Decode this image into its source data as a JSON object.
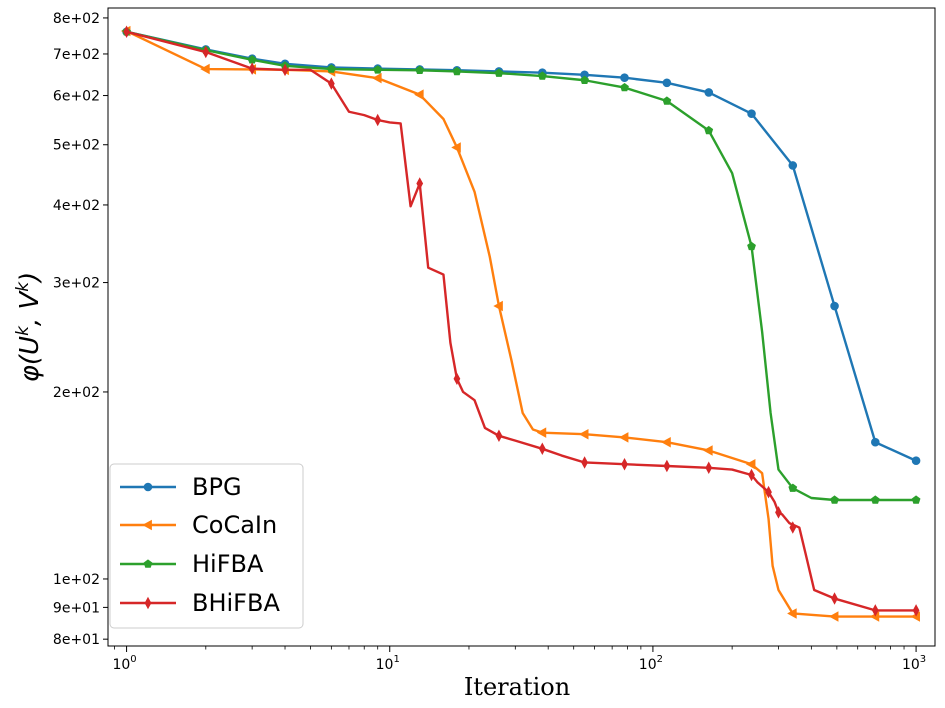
{
  "chart_data": {
    "type": "line",
    "title": "",
    "xlabel": "Iteration",
    "ylabel": "φ(U^k, V^k)",
    "ylabel_parts": {
      "phi": "φ",
      "open": "(U",
      "sup1": "k",
      "sep": ", V",
      "sup2": "k",
      "close": ")"
    },
    "xscale": "log",
    "yscale": "log",
    "xlim": [
      0.85,
      1180
    ],
    "ylim": [
      78,
      830
    ],
    "xticks": [
      {
        "value": 1,
        "base": "10",
        "exp": "0"
      },
      {
        "value": 10,
        "base": "10",
        "exp": "1"
      },
      {
        "value": 100,
        "base": "10",
        "exp": "2"
      },
      {
        "value": 1000,
        "base": "10",
        "exp": "3"
      }
    ],
    "yticks": [
      {
        "value": 80,
        "label": "8e+01"
      },
      {
        "value": 90,
        "label": "9e+01"
      },
      {
        "value": 100,
        "label": "1e+02"
      },
      {
        "value": 200,
        "label": "2e+02"
      },
      {
        "value": 300,
        "label": "3e+02"
      },
      {
        "value": 400,
        "label": "4e+02"
      },
      {
        "value": 500,
        "label": "5e+02"
      },
      {
        "value": 600,
        "label": "6e+02"
      },
      {
        "value": 700,
        "label": "7e+02"
      },
      {
        "value": 800,
        "label": "8e+02"
      }
    ],
    "legend_position": "lower-left",
    "series": [
      {
        "name": "BPG",
        "color": "#1f77b4",
        "marker": "circle",
        "points": [
          [
            1,
            760
          ],
          [
            2,
            712
          ],
          [
            3,
            688
          ],
          [
            4,
            675
          ],
          [
            6,
            666
          ],
          [
            9,
            663
          ],
          [
            13,
            661
          ],
          [
            18,
            659
          ],
          [
            26,
            656
          ],
          [
            38,
            653
          ],
          [
            55,
            648
          ],
          [
            78,
            641
          ],
          [
            113,
            629
          ],
          [
            163,
            607
          ],
          [
            237,
            561
          ],
          [
            340,
            463
          ],
          [
            490,
            275
          ],
          [
            700,
            166
          ],
          [
            1000,
            155
          ]
        ],
        "markers": [
          [
            1,
            760
          ],
          [
            2,
            712
          ],
          [
            3,
            688
          ],
          [
            4,
            675
          ],
          [
            6,
            666
          ],
          [
            9,
            663
          ],
          [
            13,
            661
          ],
          [
            18,
            659
          ],
          [
            26,
            656
          ],
          [
            38,
            653
          ],
          [
            55,
            648
          ],
          [
            78,
            641
          ],
          [
            113,
            629
          ],
          [
            163,
            607
          ],
          [
            237,
            561
          ],
          [
            340,
            463
          ],
          [
            490,
            275
          ],
          [
            700,
            166
          ],
          [
            1000,
            155
          ]
        ]
      },
      {
        "name": "CoCaIn",
        "color": "#ff7f0e",
        "marker": "triangle-left",
        "points": [
          [
            1,
            762
          ],
          [
            2,
            662
          ],
          [
            3,
            661
          ],
          [
            4,
            660
          ],
          [
            6,
            656
          ],
          [
            9,
            640
          ],
          [
            13,
            602
          ],
          [
            16,
            550
          ],
          [
            18,
            495
          ],
          [
            21,
            420
          ],
          [
            24,
            330
          ],
          [
            26,
            275
          ],
          [
            29,
            225
          ],
          [
            32,
            185
          ],
          [
            35,
            174
          ],
          [
            38,
            172
          ],
          [
            55,
            171
          ],
          [
            78,
            169
          ],
          [
            113,
            166
          ],
          [
            163,
            161
          ],
          [
            237,
            153
          ],
          [
            260,
            148
          ],
          [
            275,
            125
          ],
          [
            285,
            105
          ],
          [
            300,
            96
          ],
          [
            340,
            88
          ],
          [
            490,
            87
          ],
          [
            700,
            87
          ],
          [
            1000,
            87
          ]
        ],
        "markers": [
          [
            1,
            762
          ],
          [
            2,
            662
          ],
          [
            3,
            661
          ],
          [
            4,
            660
          ],
          [
            6,
            656
          ],
          [
            9,
            640
          ],
          [
            13,
            602
          ],
          [
            18,
            495
          ],
          [
            26,
            275
          ],
          [
            38,
            172
          ],
          [
            55,
            171
          ],
          [
            78,
            169
          ],
          [
            113,
            166
          ],
          [
            163,
            161
          ],
          [
            237,
            153
          ],
          [
            340,
            88
          ],
          [
            490,
            87
          ],
          [
            700,
            87
          ],
          [
            1000,
            87
          ]
        ]
      },
      {
        "name": "HiFBA",
        "color": "#2ca02c",
        "marker": "pentagon",
        "points": [
          [
            1,
            760
          ],
          [
            2,
            710
          ],
          [
            3,
            685
          ],
          [
            4,
            670
          ],
          [
            6,
            662
          ],
          [
            9,
            660
          ],
          [
            13,
            659
          ],
          [
            18,
            656
          ],
          [
            26,
            652
          ],
          [
            38,
            645
          ],
          [
            55,
            635
          ],
          [
            78,
            618
          ],
          [
            113,
            588
          ],
          [
            163,
            527
          ],
          [
            200,
            450
          ],
          [
            237,
            343
          ],
          [
            260,
            250
          ],
          [
            280,
            185
          ],
          [
            300,
            150
          ],
          [
            340,
            140
          ],
          [
            400,
            135
          ],
          [
            490,
            134
          ],
          [
            700,
            134
          ],
          [
            1000,
            134
          ]
        ],
        "markers": [
          [
            1,
            760
          ],
          [
            2,
            710
          ],
          [
            3,
            685
          ],
          [
            4,
            670
          ],
          [
            6,
            662
          ],
          [
            9,
            660
          ],
          [
            13,
            659
          ],
          [
            18,
            656
          ],
          [
            26,
            652
          ],
          [
            38,
            645
          ],
          [
            55,
            635
          ],
          [
            78,
            618
          ],
          [
            113,
            588
          ],
          [
            163,
            527
          ],
          [
            237,
            343
          ],
          [
            340,
            140
          ],
          [
            490,
            134
          ],
          [
            700,
            134
          ],
          [
            1000,
            134
          ]
        ]
      },
      {
        "name": "BHiFBA",
        "color": "#d62728",
        "marker": "thin-diamond",
        "points": [
          [
            1,
            760
          ],
          [
            2,
            705
          ],
          [
            3,
            663
          ],
          [
            4,
            660
          ],
          [
            5,
            660
          ],
          [
            6,
            627
          ],
          [
            7,
            565
          ],
          [
            8,
            558
          ],
          [
            9,
            548
          ],
          [
            10,
            543
          ],
          [
            11,
            541
          ],
          [
            12,
            398
          ],
          [
            13,
            433
          ],
          [
            14,
            317
          ],
          [
            16,
            309
          ],
          [
            17,
            240
          ],
          [
            18,
            210
          ],
          [
            19,
            200
          ],
          [
            21,
            194
          ],
          [
            23,
            175
          ],
          [
            26,
            170
          ],
          [
            30,
            167
          ],
          [
            38,
            162
          ],
          [
            45,
            158
          ],
          [
            55,
            154
          ],
          [
            78,
            153
          ],
          [
            113,
            152
          ],
          [
            163,
            151
          ],
          [
            200,
            150
          ],
          [
            237,
            147
          ],
          [
            250,
            143
          ],
          [
            275,
            138
          ],
          [
            290,
            133
          ],
          [
            300,
            128
          ],
          [
            310,
            127
          ],
          [
            330,
            123
          ],
          [
            360,
            121
          ],
          [
            380,
            110
          ],
          [
            410,
            96
          ],
          [
            490,
            93
          ],
          [
            700,
            89
          ],
          [
            1000,
            89
          ]
        ],
        "markers": [
          [
            1,
            760
          ],
          [
            2,
            705
          ],
          [
            3,
            663
          ],
          [
            4,
            660
          ],
          [
            6,
            627
          ],
          [
            9,
            548
          ],
          [
            13,
            433
          ],
          [
            18,
            210
          ],
          [
            26,
            170
          ],
          [
            38,
            162
          ],
          [
            55,
            154
          ],
          [
            78,
            153
          ],
          [
            113,
            152
          ],
          [
            163,
            151
          ],
          [
            237,
            147
          ],
          [
            275,
            138
          ],
          [
            300,
            128
          ],
          [
            340,
            121
          ],
          [
            490,
            93
          ],
          [
            700,
            89
          ],
          [
            1000,
            89
          ]
        ]
      }
    ]
  }
}
